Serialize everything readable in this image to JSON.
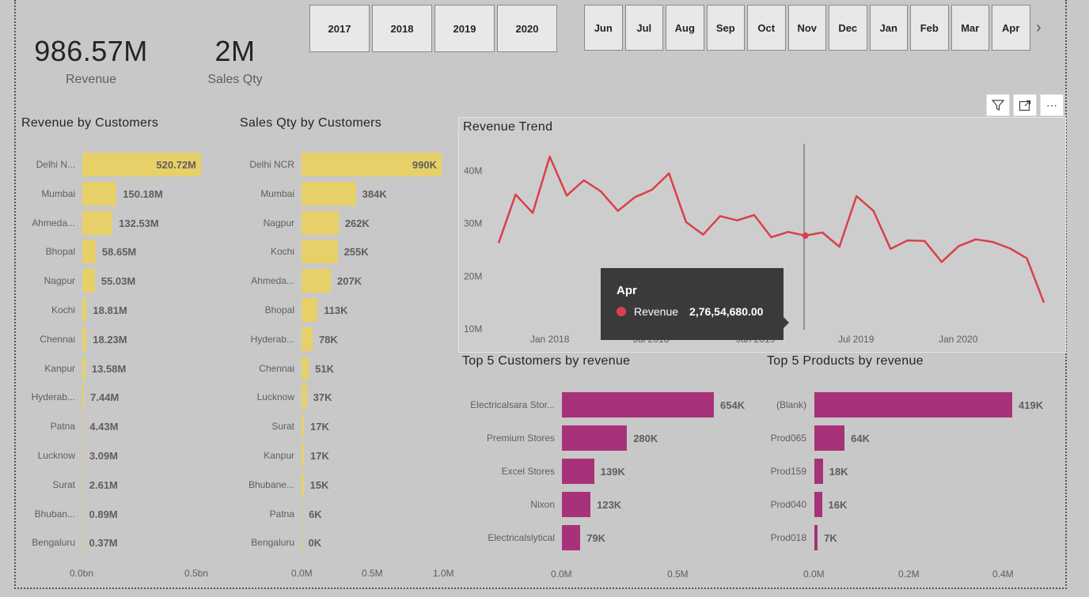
{
  "kpis": {
    "revenue": {
      "value": "986.57M",
      "label": "Revenue"
    },
    "sales_qty": {
      "value": "2M",
      "label": "Sales Qty"
    }
  },
  "year_slicer": [
    "2017",
    "2018",
    "2019",
    "2020"
  ],
  "month_slicer": [
    "Jun",
    "Jul",
    "Aug",
    "Sep",
    "Oct",
    "Nov",
    "Dec",
    "Jan",
    "Feb",
    "Mar",
    "Apr"
  ],
  "toolbar": {
    "filter_icon": "filter-icon",
    "focus_icon": "focus-mode-icon",
    "more_icon": "more-options-icon"
  },
  "colors": {
    "yellow_bar": "#e8d068",
    "magenta_bar": "#a83279",
    "trend_line": "#d9404a"
  },
  "revenue_by_customers": {
    "title": "Revenue by Customers",
    "x_axis_labels": [
      "0.0bn",
      "0.5bn"
    ],
    "categories": [
      "Delhi N...",
      "Mumbai",
      "Ahmeda...",
      "Bhopal",
      "Nagpur",
      "Kochi",
      "Chennai",
      "Kanpur",
      "Hyderab...",
      "Patna",
      "Lucknow",
      "Surat",
      "Bhuban...",
      "Bengaluru"
    ],
    "values": [
      520.72,
      150.18,
      132.53,
      58.65,
      55.03,
      18.81,
      18.23,
      13.58,
      7.44,
      4.43,
      3.09,
      2.61,
      0.89,
      0.37
    ],
    "labels": [
      "520.72M",
      "150.18M",
      "132.53M",
      "58.65M",
      "55.03M",
      "18.81M",
      "18.23M",
      "13.58M",
      "7.44M",
      "4.43M",
      "3.09M",
      "2.61M",
      "0.89M",
      "0.37M"
    ],
    "max": 520.72
  },
  "sales_qty_by_customers": {
    "title": "Sales Qty by Customers",
    "x_axis_labels": [
      "0.0M",
      "0.5M",
      "1.0M"
    ],
    "categories": [
      "Delhi NCR",
      "Mumbai",
      "Nagpur",
      "Kochi",
      "Ahmeda...",
      "Bhopal",
      "Hyderab...",
      "Chennai",
      "Lucknow",
      "Surat",
      "Kanpur",
      "Bhubane...",
      "Patna",
      "Bengaluru"
    ],
    "values": [
      990,
      384,
      262,
      255,
      207,
      113,
      78,
      51,
      37,
      17,
      17,
      15,
      6,
      0
    ],
    "labels": [
      "990K",
      "384K",
      "262K",
      "255K",
      "207K",
      "113K",
      "78K",
      "51K",
      "37K",
      "17K",
      "17K",
      "15K",
      "6K",
      "0K"
    ],
    "max": 990
  },
  "chart_data": {
    "type": "line",
    "title": "Revenue Trend",
    "series": [
      {
        "name": "Revenue",
        "values": [
          26.3,
          35.5,
          32,
          42.7,
          35.3,
          38.2,
          36.1,
          32.4,
          35,
          36.4,
          39.5,
          30.3,
          27.9,
          31.4,
          30.6,
          31.6,
          27.4,
          28.4,
          27.7,
          28.3,
          25.6,
          35.2,
          32.4,
          25.2,
          26.8,
          26.7,
          22.7,
          25.7,
          27,
          26.5,
          25.3,
          23.4,
          15
        ]
      }
    ],
    "y_ticks": [
      "40M",
      "30M",
      "20M",
      "10M"
    ],
    "x_ticks": [
      "Jan 2018",
      "Jul 2018",
      "Jan 2019",
      "Jul 2019",
      "Jan 2020"
    ],
    "ylim": [
      10,
      45
    ]
  },
  "tooltip": {
    "title": "Apr",
    "series": "Revenue",
    "value": "2,76,54,680.00"
  },
  "top5_customers": {
    "title": "Top 5 Customers by revenue",
    "x_axis_labels": [
      "0.0M",
      "0.5M"
    ],
    "categories": [
      "Electricalsara Stor...",
      "Premium Stores",
      "Excel Stores",
      "Nixon",
      "Electricalslytical"
    ],
    "values": [
      654,
      280,
      139,
      123,
      79
    ],
    "labels": [
      "654K",
      "280K",
      "139K",
      "123K",
      "79K"
    ],
    "max": 654
  },
  "top5_products": {
    "title": "Top 5 Products by revenue",
    "x_axis_labels": [
      "0.0M",
      "0.2M",
      "0.4M"
    ],
    "categories": [
      "(Blank)",
      "Prod065",
      "Prod159",
      "Prod040",
      "Prod018"
    ],
    "values": [
      419,
      64,
      18,
      16,
      7
    ],
    "labels": [
      "419K",
      "64K",
      "18K",
      "16K",
      "7K"
    ],
    "max": 419
  }
}
